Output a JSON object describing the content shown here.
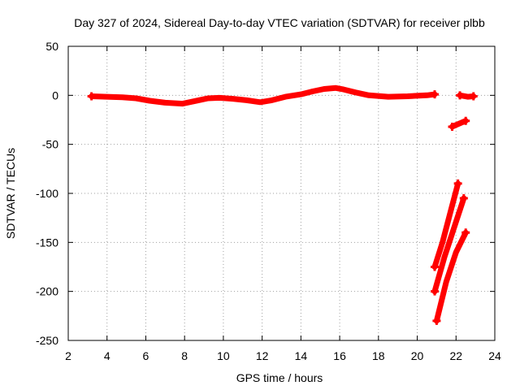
{
  "chart_data": {
    "type": "line",
    "title": "Day 327 of 2024, Sidereal Day-to-day VTEC variation (SDTVAR) for receiver plbb",
    "xlabel": "GPS time / hours",
    "ylabel": "SDTVAR / TECUs",
    "xlim": [
      2,
      24
    ],
    "ylim": [
      -250,
      50
    ],
    "xticks": [
      "2",
      "4",
      "6",
      "8",
      "10",
      "12",
      "14",
      "16",
      "18",
      "20",
      "22",
      "24"
    ],
    "yticks": [
      "50",
      "0",
      "-50",
      "-100",
      "-150",
      "-200",
      "-250"
    ],
    "grid": true,
    "color": "#ff0000",
    "series": [
      {
        "name": "sdtvar-main",
        "x": [
          3.2,
          4.0,
          4.8,
          5.5,
          6.2,
          7.0,
          7.9,
          8.5,
          9.2,
          9.8,
          10.5,
          11.2,
          11.9,
          12.5,
          13.2,
          14.0,
          14.6,
          15.2,
          15.8,
          16.2,
          16.8,
          17.5,
          18.5,
          19.5,
          20.5,
          20.9
        ],
        "y": [
          -1,
          -1.5,
          -2,
          -3,
          -5.5,
          -7.5,
          -8.5,
          -6,
          -3,
          -2.5,
          -3.5,
          -5,
          -7,
          -5,
          -1.5,
          1,
          4,
          6.5,
          7.5,
          6,
          3,
          0,
          -1.5,
          -1,
          0,
          1
        ]
      },
      {
        "name": "sdtvar-late-high",
        "x": [
          22.2,
          22.6,
          22.9
        ],
        "y": [
          0,
          -1.5,
          -1
        ]
      },
      {
        "name": "sdtvar-late-mid",
        "x": [
          21.8,
          22.5
        ],
        "y": [
          -32,
          -26
        ]
      },
      {
        "name": "sdtvar-steep-1",
        "x": [
          20.9,
          21.3,
          21.7,
          22.1
        ],
        "y": [
          -175,
          -150,
          -120,
          -90
        ]
      },
      {
        "name": "sdtvar-steep-2",
        "x": [
          20.9,
          21.4,
          21.9,
          22.4
        ],
        "y": [
          -200,
          -165,
          -135,
          -105
        ]
      },
      {
        "name": "sdtvar-steep-3",
        "x": [
          21.0,
          21.5,
          22.0,
          22.5
        ],
        "y": [
          -230,
          -190,
          -160,
          -140
        ]
      }
    ]
  }
}
